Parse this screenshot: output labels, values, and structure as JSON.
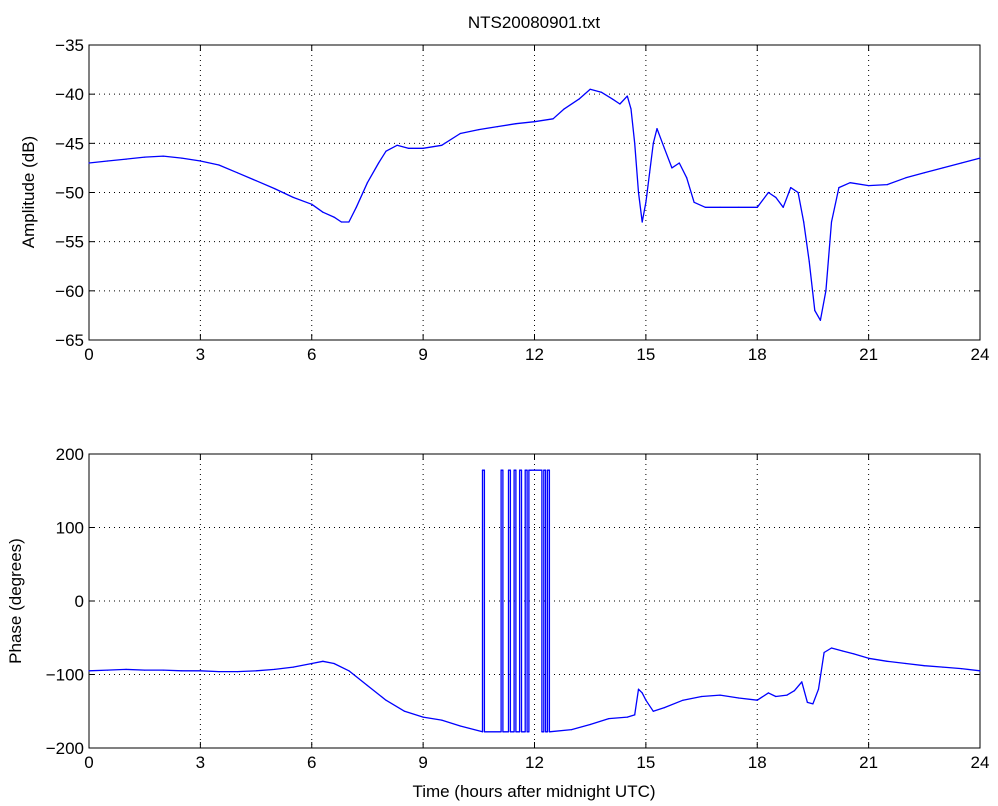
{
  "figure": {
    "title": "NTS20080901.txt",
    "line_color": "#0000ff",
    "grid": "dotted"
  },
  "chart_data": [
    {
      "type": "line",
      "title": "NTS20080901.txt",
      "xlabel": "",
      "ylabel": "Amplitude (dB)",
      "xlim": [
        0,
        24
      ],
      "ylim": [
        -65,
        -35
      ],
      "xticks": [
        0,
        3,
        6,
        9,
        12,
        15,
        18,
        21,
        24
      ],
      "yticks": [
        -35,
        -40,
        -45,
        -50,
        -55,
        -60,
        -65
      ],
      "grid": true,
      "series": [
        {
          "color": "#0000ff",
          "x": [
            0,
            0.5,
            1,
            1.5,
            2,
            2.5,
            3,
            3.5,
            4,
            4.5,
            5,
            5.5,
            6,
            6.3,
            6.6,
            6.8,
            7.0,
            7.2,
            7.5,
            7.8,
            8.0,
            8.3,
            8.6,
            9.0,
            9.5,
            10,
            10.5,
            11,
            11.5,
            12,
            12.5,
            12.8,
            13.2,
            13.5,
            13.8,
            14.1,
            14.3,
            14.5,
            14.6,
            14.7,
            14.8,
            14.9,
            15.0,
            15.1,
            15.2,
            15.3,
            15.5,
            15.7,
            15.9,
            16.1,
            16.3,
            16.6,
            17.0,
            17.5,
            18.0,
            18.3,
            18.5,
            18.7,
            18.9,
            19.1,
            19.25,
            19.4,
            19.55,
            19.7,
            19.85,
            20.0,
            20.2,
            20.5,
            21.0,
            21.5,
            22.0,
            22.5,
            23.0,
            23.5,
            24.0
          ],
          "y": [
            -47.0,
            -46.8,
            -46.6,
            -46.4,
            -46.3,
            -46.5,
            -46.8,
            -47.2,
            -48.0,
            -48.8,
            -49.6,
            -50.5,
            -51.2,
            -52.0,
            -52.5,
            -53.0,
            -53.0,
            -51.5,
            -49.0,
            -47.0,
            -45.8,
            -45.2,
            -45.5,
            -45.5,
            -45.2,
            -44.0,
            -43.6,
            -43.3,
            -43.0,
            -42.8,
            -42.5,
            -41.5,
            -40.5,
            -39.5,
            -39.8,
            -40.5,
            -41.0,
            -40.2,
            -41.5,
            -45.0,
            -50.0,
            -53.0,
            -51.0,
            -48.0,
            -45.0,
            -43.5,
            -45.5,
            -47.5,
            -47.0,
            -48.5,
            -51.0,
            -51.5,
            -51.5,
            -51.5,
            -51.5,
            -50.0,
            -50.5,
            -51.5,
            -49.5,
            -50.0,
            -53.0,
            -57.0,
            -62.0,
            -63.0,
            -60.0,
            -53.0,
            -49.5,
            -49.0,
            -49.3,
            -49.2,
            -48.5,
            -48.0,
            -47.5,
            -47.0,
            -46.5
          ]
        }
      ]
    },
    {
      "type": "line",
      "title": "",
      "xlabel": "Time (hours after midnight UTC)",
      "ylabel": "Phase (degrees)",
      "xlim": [
        0,
        24
      ],
      "ylim": [
        -200,
        200
      ],
      "xticks": [
        0,
        3,
        6,
        9,
        12,
        15,
        18,
        21,
        24
      ],
      "yticks": [
        200,
        100,
        0,
        -100,
        -200
      ],
      "grid": true,
      "series": [
        {
          "color": "#0000ff",
          "x": [
            0,
            0.5,
            1,
            1.5,
            2,
            2.5,
            3,
            3.5,
            4,
            4.5,
            5,
            5.5,
            6,
            6.3,
            6.6,
            7.0,
            7.5,
            8.0,
            8.5,
            9.0,
            9.5,
            10,
            10.6,
            10.6,
            10.65,
            10.65,
            11.1,
            11.1,
            11.15,
            11.15,
            11.3,
            11.3,
            11.35,
            11.35,
            11.45,
            11.45,
            11.5,
            11.5,
            11.6,
            11.6,
            11.65,
            11.65,
            11.75,
            11.75,
            11.8,
            11.8,
            11.85,
            11.85,
            11.9,
            11.9,
            12.2,
            12.2,
            12.25,
            12.25,
            12.3,
            12.3,
            12.35,
            12.35,
            12.4,
            12.4,
            13.0,
            13.5,
            14.0,
            14.5,
            14.7,
            14.8,
            14.9,
            15.0,
            15.2,
            15.5,
            16.0,
            16.5,
            17.0,
            17.5,
            18.0,
            18.3,
            18.5,
            18.8,
            19.0,
            19.2,
            19.35,
            19.5,
            19.65,
            19.8,
            20.0,
            20.3,
            20.6,
            21.0,
            21.5,
            22.0,
            22.5,
            23.0,
            23.5,
            24.0
          ],
          "y": [
            -95,
            -94,
            -93,
            -94,
            -94,
            -95,
            -95,
            -96,
            -96,
            -95,
            -93,
            -90,
            -85,
            -82,
            -85,
            -95,
            -115,
            -135,
            -150,
            -158,
            -162,
            -170,
            -178,
            178,
            178,
            -178,
            -178,
            178,
            178,
            -178,
            -178,
            178,
            178,
            -178,
            -178,
            178,
            178,
            -178,
            -178,
            178,
            178,
            -178,
            -178,
            178,
            178,
            -178,
            -178,
            178,
            178,
            178,
            178,
            -178,
            -178,
            178,
            178,
            -178,
            -178,
            178,
            178,
            -178,
            -175,
            -168,
            -160,
            -158,
            -155,
            -120,
            -125,
            -135,
            -150,
            -145,
            -135,
            -130,
            -128,
            -132,
            -135,
            -125,
            -130,
            -128,
            -122,
            -110,
            -138,
            -140,
            -120,
            -70,
            -64,
            -68,
            -72,
            -78,
            -82,
            -85,
            -88,
            -90,
            -92,
            -95
          ]
        }
      ]
    }
  ]
}
